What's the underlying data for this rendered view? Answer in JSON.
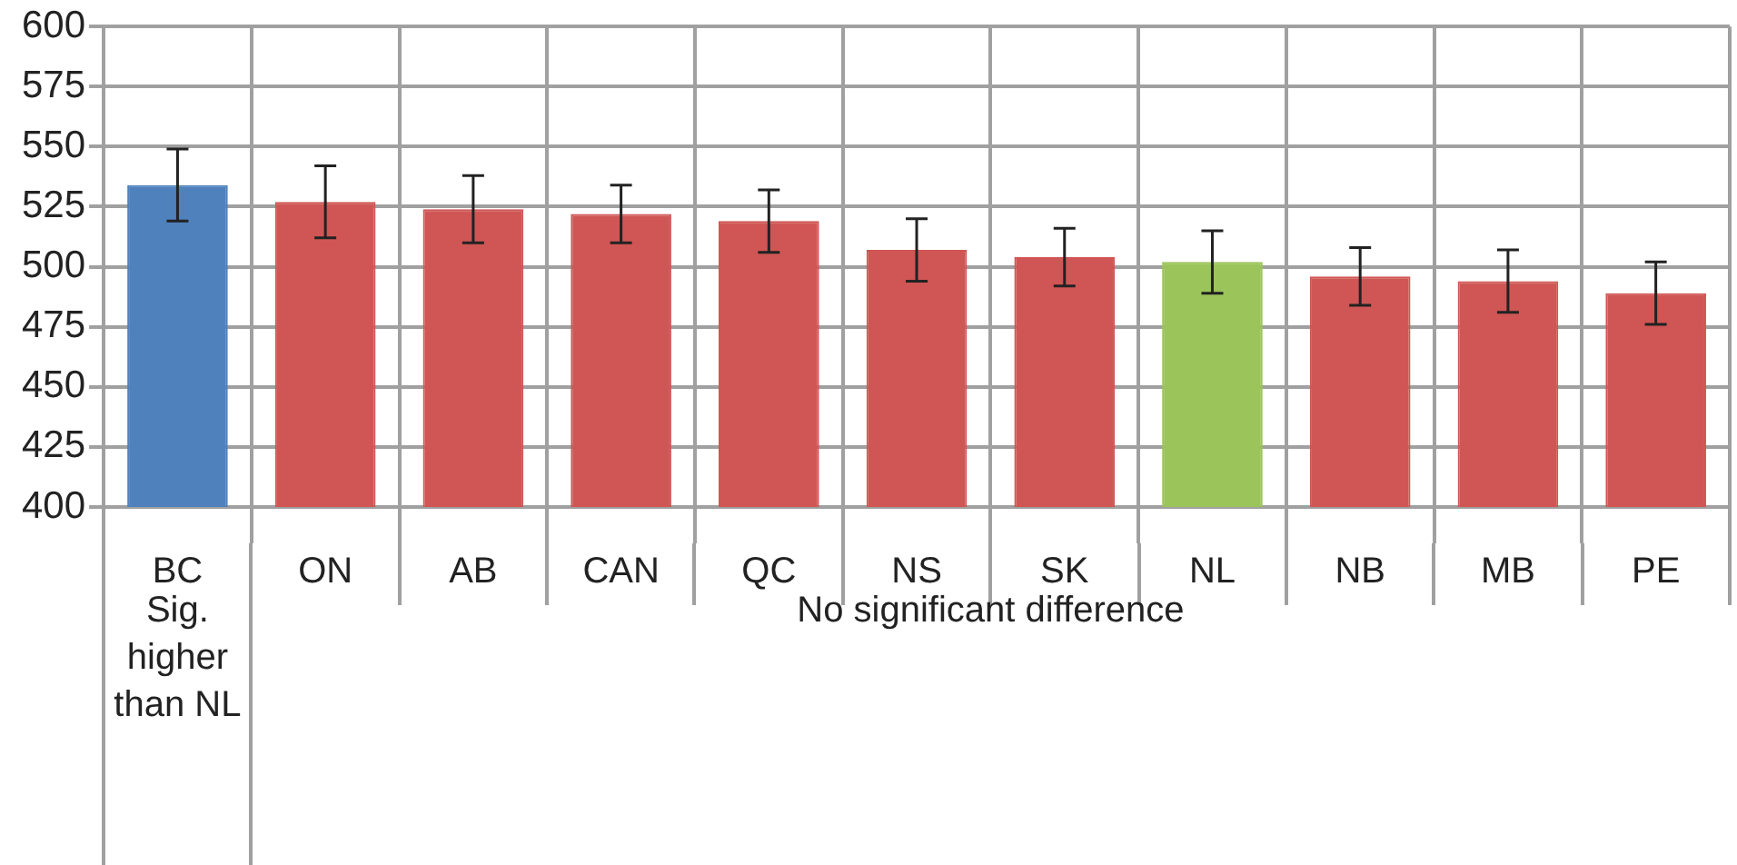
{
  "chart_data": {
    "type": "bar",
    "categories": [
      "BC",
      "ON",
      "AB",
      "CAN",
      "QC",
      "NS",
      "SK",
      "NL",
      "NB",
      "MB",
      "PE"
    ],
    "values": [
      534,
      527,
      524,
      522,
      519,
      507,
      504,
      502,
      496,
      494,
      489
    ],
    "errors": [
      15,
      15,
      14,
      12,
      13,
      13,
      12,
      13,
      12,
      13,
      13
    ],
    "colors": [
      "#4f81bd",
      "#cf5654",
      "#cf5654",
      "#cf5654",
      "#cf5654",
      "#cf5654",
      "#cf5654",
      "#9bc45a",
      "#cf5654",
      "#cf5654",
      "#cf5654"
    ],
    "ylim": [
      400,
      600
    ],
    "yticks": [
      400,
      425,
      450,
      475,
      500,
      525,
      550,
      575,
      600
    ],
    "grid": true,
    "legend": false,
    "annotations": [
      "Sig. higher than NL",
      "No significant difference"
    ]
  }
}
